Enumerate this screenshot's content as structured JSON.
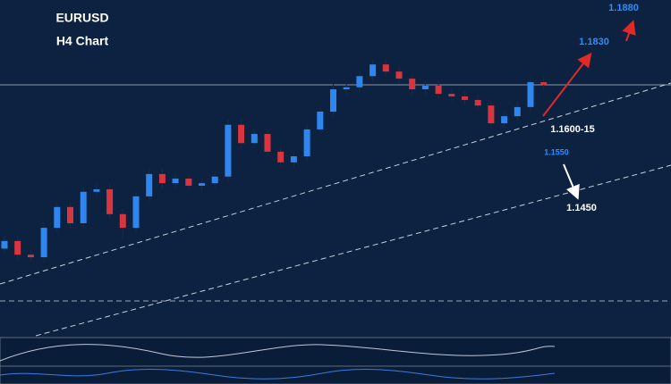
{
  "chart_data": {
    "type": "candlestick",
    "title": "EURUSD",
    "subtitle": "H4 Chart",
    "ylim": [
      1.119,
      1.185
    ],
    "up_color": "#2f86ee",
    "down_color": "#d8353f",
    "open": [
      1.136,
      1.1375,
      1.1348,
      1.1343,
      1.1401,
      1.1442,
      1.141,
      1.1472,
      1.1477,
      1.1428,
      1.1401,
      1.1463,
      1.1507,
      1.1489,
      1.1498,
      1.1484,
      1.1489,
      1.1502,
      1.1604,
      1.1568,
      1.1586,
      1.1551,
      1.153,
      1.1542,
      1.1595,
      1.163,
      1.1674,
      1.1678,
      1.17,
      1.1723,
      1.1709,
      1.1695,
      1.1674,
      1.1681,
      1.1665,
      1.166,
      1.1653,
      1.1642,
      1.1607,
      1.1621,
      1.1639,
      1.1688
    ],
    "high": [
      1.1385,
      1.1385,
      1.1358,
      1.1411,
      1.1452,
      1.1452,
      1.1482,
      1.1487,
      1.1487,
      1.1438,
      1.1473,
      1.1517,
      1.1517,
      1.1508,
      1.1508,
      1.1499,
      1.1512,
      1.1614,
      1.1614,
      1.1596,
      1.1596,
      1.1561,
      1.1552,
      1.1605,
      1.164,
      1.1684,
      1.1688,
      1.171,
      1.1733,
      1.1733,
      1.1719,
      1.1705,
      1.1691,
      1.1691,
      1.1675,
      1.167,
      1.1663,
      1.1652,
      1.1631,
      1.1649,
      1.1698,
      1.1698
    ],
    "low": [
      1.135,
      1.1338,
      1.1333,
      1.1333,
      1.1391,
      1.14,
      1.14,
      1.1462,
      1.1418,
      1.1378,
      1.1391,
      1.1453,
      1.1479,
      1.1479,
      1.1474,
      1.1474,
      1.1479,
      1.1492,
      1.1558,
      1.1558,
      1.1541,
      1.152,
      1.152,
      1.1532,
      1.1585,
      1.162,
      1.1664,
      1.1668,
      1.169,
      1.1699,
      1.1685,
      1.1664,
      1.1664,
      1.1655,
      1.165,
      1.1643,
      1.1632,
      1.1597,
      1.1597,
      1.1611,
      1.1629,
      1.1673
    ],
    "close": [
      1.1375,
      1.1348,
      1.1343,
      1.1401,
      1.1442,
      1.141,
      1.1472,
      1.1477,
      1.1428,
      1.1401,
      1.1463,
      1.1507,
      1.1489,
      1.1498,
      1.1484,
      1.1489,
      1.1502,
      1.1604,
      1.1568,
      1.1586,
      1.1551,
      1.153,
      1.1542,
      1.1595,
      1.163,
      1.1674,
      1.1678,
      1.17,
      1.1723,
      1.1709,
      1.1695,
      1.1674,
      1.1681,
      1.1665,
      1.166,
      1.1653,
      1.1642,
      1.1607,
      1.1621,
      1.1639,
      1.1688,
      1.1683
    ],
    "annotations": [
      "1.1880",
      "1.1830",
      "1.1600-15",
      "1.1550",
      "1.1450"
    ]
  }
}
